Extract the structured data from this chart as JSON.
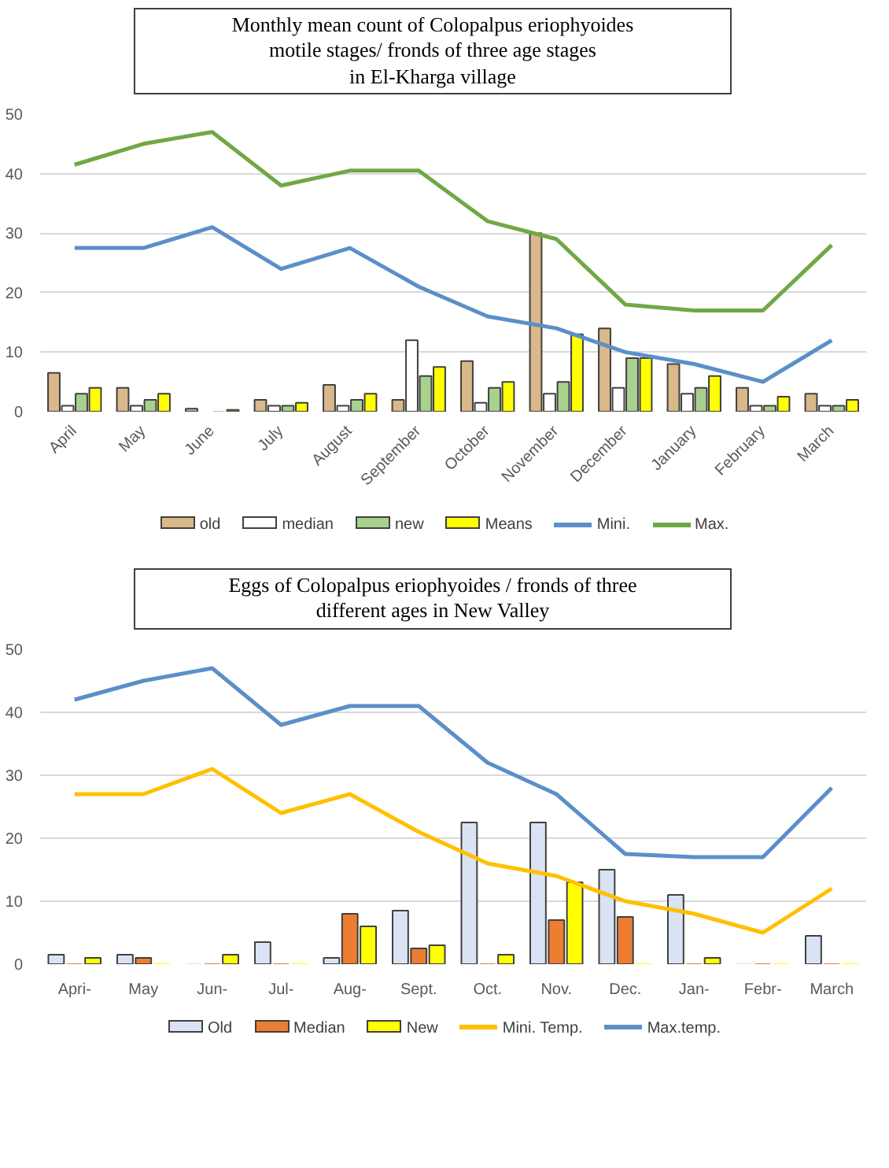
{
  "chart_data": [
    {
      "type": "bar",
      "title": "Monthly mean count of Colopalpus eriophyoides\nmotile stages/ fronds of three age stages\nin El-Kharga village",
      "categories": [
        "April",
        "May",
        "June",
        "July",
        "August",
        "September",
        "October",
        "November",
        "December",
        "January",
        "February",
        "March"
      ],
      "series": [
        {
          "name": "old",
          "color": "#d9b88a",
          "values": [
            6.5,
            4,
            0.5,
            2,
            4.5,
            2,
            8.5,
            30,
            14,
            8,
            4,
            3
          ]
        },
        {
          "name": "median",
          "color": "#ffffff",
          "values": [
            1,
            1,
            0,
            1,
            1,
            12,
            1.5,
            3,
            4,
            3,
            1,
            1
          ]
        },
        {
          "name": "new",
          "color": "#a9d18e",
          "values": [
            3,
            2,
            0,
            1,
            2,
            6,
            4,
            5,
            9,
            4,
            1,
            1
          ]
        },
        {
          "name": "Means",
          "color": "#ffff00",
          "values": [
            4,
            3,
            0.3,
            1.5,
            3,
            7.5,
            5,
            13,
            9,
            6,
            2.5,
            2
          ]
        },
        {
          "name": "Mini.",
          "type": "line",
          "color": "#5b8fc9",
          "values": [
            27.5,
            27.5,
            31,
            24,
            27.5,
            21,
            16,
            14,
            10,
            8,
            5,
            12
          ]
        },
        {
          "name": "Max.",
          "type": "line",
          "color": "#70a845",
          "values": [
            41.5,
            45,
            47,
            38,
            40.5,
            40.5,
            32,
            29,
            18,
            17,
            17,
            28
          ]
        }
      ],
      "ylim": [
        0,
        50
      ],
      "yticks": [
        0,
        10,
        20,
        30,
        40,
        50
      ],
      "grid": "y",
      "legend": "bottom"
    },
    {
      "type": "bar",
      "title": "Eggs of Colopalpus eriophyoides / fronds of three\ndifferent ages in New Valley",
      "categories": [
        "Apri-",
        "May",
        "Jun-",
        "Jul-",
        "Aug-",
        "Sept.",
        "Oct.",
        "Nov.",
        "Dec.",
        "Jan-",
        "Febr-",
        "March"
      ],
      "series": [
        {
          "name": "Old",
          "color": "#dae3f3",
          "values": [
            1.5,
            1.5,
            0,
            3.5,
            1,
            8.5,
            22.5,
            22.5,
            15,
            11,
            0,
            4.5
          ]
        },
        {
          "name": "Median",
          "color": "#ed7d31",
          "values": [
            0,
            1,
            0,
            0,
            8,
            2.5,
            0,
            7,
            7.5,
            0,
            0,
            0
          ]
        },
        {
          "name": "New",
          "color": "#ffff00",
          "values": [
            1,
            0,
            1.5,
            0,
            6,
            3,
            1.5,
            13,
            0,
            1,
            0,
            0
          ]
        },
        {
          "name": "Mini. Temp.",
          "type": "line",
          "color": "#ffc000",
          "values": [
            27,
            27,
            31,
            24,
            27,
            21,
            16,
            14,
            10,
            8,
            5,
            12
          ]
        },
        {
          "name": "Max.temp.",
          "type": "line",
          "color": "#5b8fc9",
          "values": [
            42,
            45,
            47,
            38,
            41,
            41,
            32,
            27,
            17.5,
            17,
            17,
            28
          ]
        }
      ],
      "ylim": [
        0,
        50
      ],
      "yticks": [
        0,
        10,
        20,
        30,
        40,
        50
      ],
      "grid": "y",
      "legend": "bottom"
    }
  ]
}
